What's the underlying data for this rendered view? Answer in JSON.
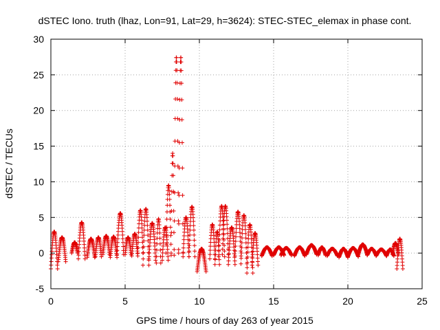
{
  "chart_data": {
    "type": "scatter",
    "title": "dSTEC Iono. truth (lhaz, Lon=91, Lat=29, h=3624): STEC-STEC_elemax in phase cont.",
    "xlabel": "GPS time / hours of day 263 of year 2015",
    "ylabel": "dSTEC  / TECUs",
    "xlim": [
      0,
      25
    ],
    "ylim": [
      -5,
      30
    ],
    "xticks": [
      0,
      5,
      10,
      15,
      20,
      25
    ],
    "yticks": [
      -5,
      0,
      5,
      10,
      15,
      20,
      25,
      30
    ],
    "grid": true,
    "marker": "+",
    "color": "#e00000",
    "segments": [
      {
        "t0": 0.0,
        "t1": 0.45,
        "y0": -2.2,
        "y1": 3.0
      },
      {
        "t0": 0.5,
        "t1": 1.0,
        "y0": -1.2,
        "y1": 2.2
      },
      {
        "t0": 1.4,
        "t1": 1.8,
        "y0": 0.0,
        "y1": 1.5
      },
      {
        "t0": 1.85,
        "t1": 2.3,
        "y0": -0.8,
        "y1": 4.3
      },
      {
        "t0": 2.45,
        "t1": 2.95,
        "y0": -0.6,
        "y1": 2.0
      },
      {
        "t0": 3.0,
        "t1": 3.4,
        "y0": -0.5,
        "y1": 2.2
      },
      {
        "t0": 3.5,
        "t1": 3.95,
        "y0": -0.2,
        "y1": 2.4
      },
      {
        "t0": 4.0,
        "t1": 4.45,
        "y0": -0.6,
        "y1": 2.3
      },
      {
        "t0": 4.45,
        "t1": 4.9,
        "y0": -0.2,
        "y1": 5.6
      },
      {
        "t0": 5.0,
        "t1": 5.4,
        "y0": -0.2,
        "y1": 2.2
      },
      {
        "t0": 5.45,
        "t1": 5.85,
        "y0": -0.4,
        "y1": 2.7
      },
      {
        "t0": 5.85,
        "t1": 6.2,
        "y0": 0.0,
        "y1": 6.0
      },
      {
        "t0": 6.2,
        "t1": 6.6,
        "y0": -1.7,
        "y1": 6.2
      },
      {
        "t0": 6.6,
        "t1": 7.05,
        "y0": -1.0,
        "y1": 4.2
      },
      {
        "t0": 7.1,
        "t1": 7.4,
        "y0": -1.4,
        "y1": 4.8
      },
      {
        "t0": 7.5,
        "t1": 7.9,
        "y0": -1.0,
        "y1": 3.6
      },
      {
        "t0": 7.75,
        "t1": 8.1,
        "y0": 0.0,
        "y1": 9.5
      },
      {
        "t0": 8.1,
        "t1": 8.3,
        "y0": -0.3,
        "y1": 14.0
      },
      {
        "t0": 8.3,
        "t1": 8.6,
        "y0": 0.5,
        "y1": 27.5
      },
      {
        "t0": 8.6,
        "t1": 8.9,
        "y0": 0.0,
        "y1": 27.5
      },
      {
        "t0": 8.9,
        "t1": 9.3,
        "y0": -0.5,
        "y1": 5.0
      },
      {
        "t0": 9.3,
        "t1": 9.7,
        "y0": -0.5,
        "y1": 6.5
      },
      {
        "t0": 9.85,
        "t1": 10.45,
        "y0": -2.6,
        "y1": 0.6
      },
      {
        "t0": 10.7,
        "t1": 11.05,
        "y0": -0.8,
        "y1": 4.0
      },
      {
        "t0": 11.05,
        "t1": 11.35,
        "y0": -1.6,
        "y1": 3.0
      },
      {
        "t0": 11.3,
        "t1": 11.7,
        "y0": -0.5,
        "y1": 6.6
      },
      {
        "t0": 11.55,
        "t1": 11.95,
        "y0": -0.2,
        "y1": 6.6
      },
      {
        "t0": 11.95,
        "t1": 12.4,
        "y0": -1.6,
        "y1": 3.6
      },
      {
        "t0": 12.4,
        "t1": 12.8,
        "y0": -0.4,
        "y1": 5.8
      },
      {
        "t0": 12.8,
        "t1": 13.2,
        "y0": -1.5,
        "y1": 5.3
      },
      {
        "t0": 13.2,
        "t1": 13.6,
        "y0": -2.8,
        "y1": 4.0
      },
      {
        "t0": 13.55,
        "t1": 13.95,
        "y0": -1.7,
        "y1": 2.8
      },
      {
        "t0": 14.2,
        "t1": 14.9,
        "y0": -0.4,
        "y1": 0.8
      },
      {
        "t0": 15.0,
        "t1": 15.7,
        "y0": -0.3,
        "y1": 0.8
      },
      {
        "t0": 15.5,
        "t1": 16.2,
        "y0": -0.3,
        "y1": 0.7
      },
      {
        "t0": 16.4,
        "t1": 17.1,
        "y0": -0.4,
        "y1": 0.8
      },
      {
        "t0": 17.2,
        "t1": 17.9,
        "y0": -0.2,
        "y1": 1.1
      },
      {
        "t0": 18.0,
        "t1": 18.5,
        "y0": -0.3,
        "y1": 0.8
      },
      {
        "t0": 18.6,
        "t1": 19.3,
        "y0": -0.4,
        "y1": 0.6
      },
      {
        "t0": 19.4,
        "t1": 20.0,
        "y0": -0.6,
        "y1": 0.6
      },
      {
        "t0": 20.0,
        "t1": 20.7,
        "y0": -0.5,
        "y1": 0.7
      },
      {
        "t0": 20.7,
        "t1": 21.3,
        "y0": -0.2,
        "y1": 1.2
      },
      {
        "t0": 21.3,
        "t1": 21.9,
        "y0": -0.3,
        "y1": 0.6
      },
      {
        "t0": 21.9,
        "t1": 22.6,
        "y0": -0.4,
        "y1": 0.5
      },
      {
        "t0": 22.6,
        "t1": 23.1,
        "y0": -0.4,
        "y1": 0.5
      },
      {
        "t0": 23.0,
        "t1": 23.4,
        "y0": -0.2,
        "y1": 1.4
      },
      {
        "t0": 23.3,
        "t1": 23.7,
        "y0": -2.2,
        "y1": 2.0
      }
    ]
  }
}
